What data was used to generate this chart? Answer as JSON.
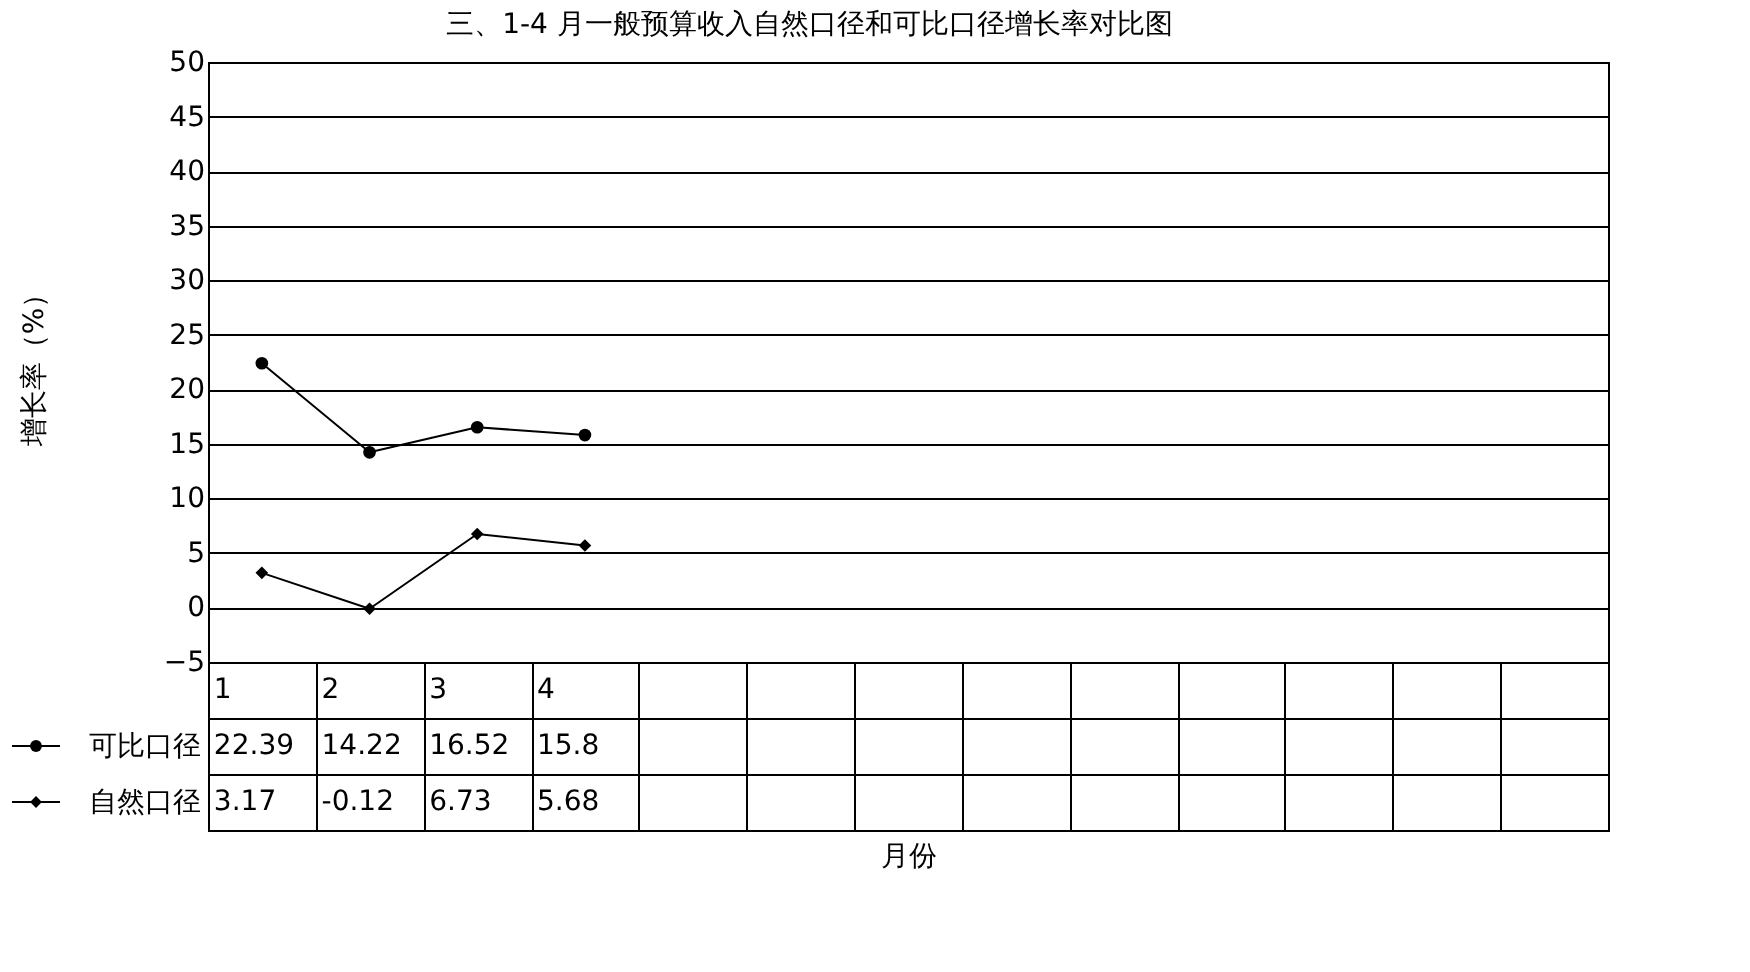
{
  "chart_data": {
    "type": "line",
    "title": "三、1-4 月一般预算收入自然口径和可比口径增长率对比图",
    "xlabel": "月份",
    "ylabel": "增长率（%）",
    "categories": [
      "1",
      "2",
      "3",
      "4",
      null,
      null,
      null,
      null,
      null,
      null,
      null,
      null,
      null
    ],
    "series": [
      {
        "name": "可比口径",
        "color": "#000000",
        "marker": "circle",
        "values": [
          22.39,
          14.22,
          16.52,
          15.8,
          null,
          null,
          null,
          null,
          null,
          null,
          null,
          null,
          null
        ]
      },
      {
        "name": "自然口径",
        "color": "#000000",
        "marker": "diamond",
        "values": [
          3.17,
          -0.12,
          6.73,
          5.68,
          null,
          null,
          null,
          null,
          null,
          null,
          null,
          null,
          null
        ]
      }
    ],
    "ylim": [
      -5,
      50
    ],
    "yticks": [
      -5,
      0,
      5,
      10,
      15,
      20,
      25,
      30,
      35,
      40,
      45,
      50
    ],
    "grid": "y",
    "legend": "bottom left",
    "line_style": "solid",
    "data_labels": true
  }
}
